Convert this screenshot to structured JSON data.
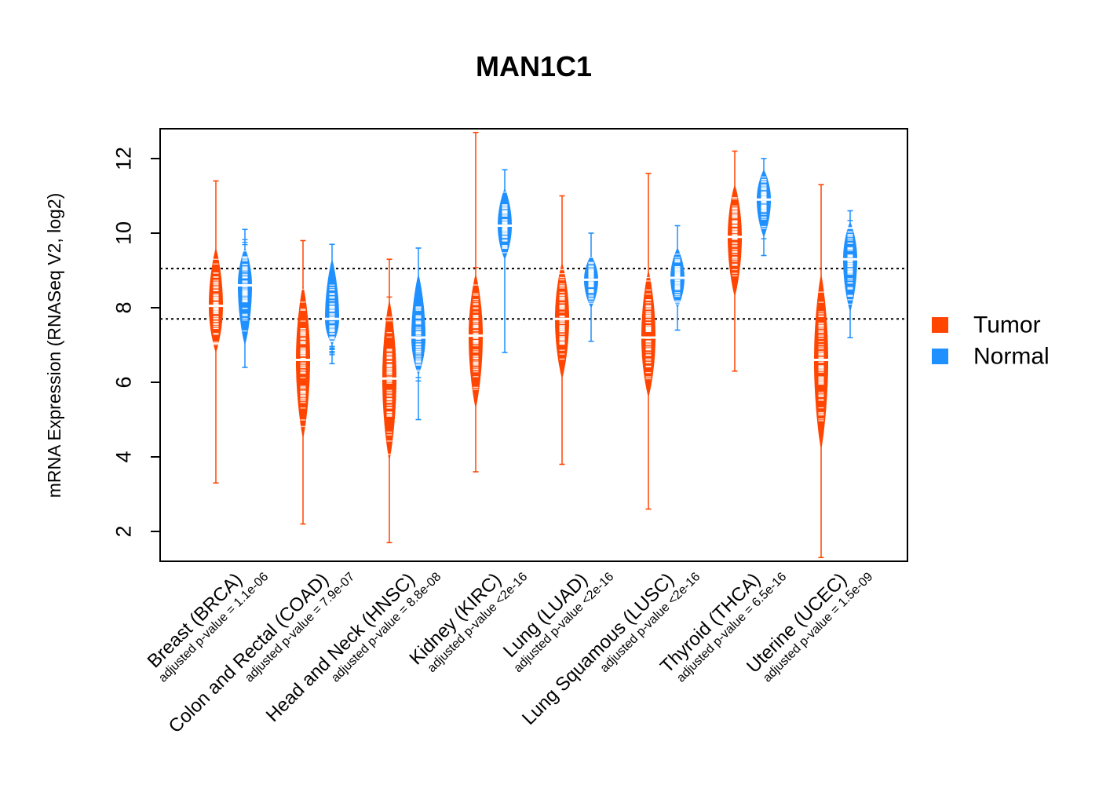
{
  "chart_data": {
    "type": "beanplot",
    "title": "MAN1C1",
    "ylabel": "mRNA Expression (RNASeq V2, log2)",
    "xlabel": "",
    "ylim": [
      1.2,
      12.8
    ],
    "yticks": [
      "2",
      "4",
      "6",
      "8",
      "10",
      "12"
    ],
    "ytick_values": [
      2,
      4,
      6,
      8,
      10,
      12
    ],
    "reference_lines": [
      9.05,
      7.7
    ],
    "legend": {
      "position": "right",
      "entries": [
        {
          "name": "Tumor",
          "color": "#ff4500"
        },
        {
          "name": "Normal",
          "color": "#1e90ff"
        }
      ]
    },
    "categories": [
      {
        "name": "Breast (BRCA)",
        "pvalue": "adjusted p-value = 1.1e-06"
      },
      {
        "name": "Colon and Rectal (COAD)",
        "pvalue": "adjusted p-value = 7.9e-07"
      },
      {
        "name": "Head and Neck (HNSC)",
        "pvalue": "adjusted p-value = 8.8e-08"
      },
      {
        "name": "Kidney (KIRC)",
        "pvalue": "adjusted p-value <2e-16"
      },
      {
        "name": "Lung (LUAD)",
        "pvalue": "adjusted p-value <2e-16"
      },
      {
        "name": "Lung Squamous (LUSC)",
        "pvalue": "adjusted p-value <2e-16"
      },
      {
        "name": "Thyroid (THCA)",
        "pvalue": "adjusted p-value = 6.5e-16"
      },
      {
        "name": "Uterine (UCEC)",
        "pvalue": "adjusted p-value = 1.5e-09"
      }
    ],
    "series": [
      {
        "name": "Tumor",
        "color": "#ff4500",
        "groups": [
          {
            "median": 8.05,
            "core_min": 6.8,
            "core_max": 9.6,
            "whisker_min": 3.3,
            "whisker_max": 11.4
          },
          {
            "median": 6.6,
            "core_min": 4.5,
            "core_max": 8.6,
            "whisker_min": 2.2,
            "whisker_max": 9.8
          },
          {
            "median": 6.1,
            "core_min": 3.9,
            "core_max": 8.2,
            "whisker_min": 1.7,
            "whisker_max": 9.3
          },
          {
            "median": 7.25,
            "core_min": 5.3,
            "core_max": 8.9,
            "whisker_min": 3.6,
            "whisker_max": 12.7
          },
          {
            "median": 7.7,
            "core_min": 6.1,
            "core_max": 9.2,
            "whisker_min": 3.8,
            "whisker_max": 11.0
          },
          {
            "median": 7.2,
            "core_min": 5.6,
            "core_max": 9.0,
            "whisker_min": 2.6,
            "whisker_max": 11.6
          },
          {
            "median": 9.9,
            "core_min": 8.3,
            "core_max": 11.3,
            "whisker_min": 6.3,
            "whisker_max": 12.2
          },
          {
            "median": 6.6,
            "core_min": 4.2,
            "core_max": 8.9,
            "whisker_min": 1.3,
            "whisker_max": 11.3
          }
        ]
      },
      {
        "name": "Normal",
        "color": "#1e90ff",
        "groups": [
          {
            "median": 8.6,
            "core_min": 7.0,
            "core_max": 9.6,
            "whisker_min": 6.4,
            "whisker_max": 10.1
          },
          {
            "median": 7.7,
            "core_min": 7.0,
            "core_max": 9.3,
            "whisker_min": 6.5,
            "whisker_max": 9.7
          },
          {
            "median": 7.2,
            "core_min": 6.2,
            "core_max": 8.9,
            "whisker_min": 5.0,
            "whisker_max": 9.6
          },
          {
            "median": 10.2,
            "core_min": 9.3,
            "core_max": 11.2,
            "whisker_min": 6.8,
            "whisker_max": 11.7
          },
          {
            "median": 8.75,
            "core_min": 8.0,
            "core_max": 9.4,
            "whisker_min": 7.1,
            "whisker_max": 10.0
          },
          {
            "median": 8.8,
            "core_min": 8.0,
            "core_max": 9.6,
            "whisker_min": 7.4,
            "whisker_max": 10.2
          },
          {
            "median": 10.9,
            "core_min": 9.9,
            "core_max": 11.7,
            "whisker_min": 9.4,
            "whisker_max": 12.0
          },
          {
            "median": 9.3,
            "core_min": 7.9,
            "core_max": 10.3,
            "whisker_min": 7.2,
            "whisker_max": 10.6
          }
        ]
      }
    ]
  }
}
